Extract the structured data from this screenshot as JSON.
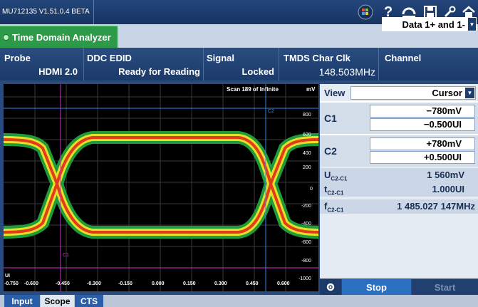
{
  "app": {
    "version": "MU712135 V1.51.0.4 BETA"
  },
  "toolbar": {
    "icons": [
      "windows-icon",
      "help-icon",
      "undo-icon",
      "save-icon",
      "wrench-icon",
      "back-icon",
      "home-icon"
    ],
    "help_glyph": "?"
  },
  "tabs": {
    "active": "Time Domain Analyzer"
  },
  "info": {
    "probe_label": "Probe",
    "probe_value": "HDMI 2.0",
    "ddc_label": "DDC EDID",
    "ddc_value": "Ready for Reading",
    "signal_label": "Signal",
    "signal_value": "Locked",
    "tmds_label": "TMDS Char Clk",
    "tmds_value": "148.503MHz",
    "channel_label": "Channel",
    "channel_value": "Data 1+ and 1-"
  },
  "plot": {
    "scan": "Scan 189 of Infinite",
    "yunit": "mV",
    "xunit": "UI",
    "yticks": [
      "800",
      "600",
      "400",
      "200",
      "0",
      "-200",
      "-400",
      "-600",
      "-800",
      "-1000"
    ],
    "xticks": [
      "-0.750",
      "-0.600",
      "-0.450",
      "-0.300",
      "-0.150",
      "0.000",
      "0.150",
      "0.300",
      "0.450",
      "0.600"
    ],
    "c1_label": "C1",
    "c2_label": "C2",
    "colors": {
      "cursor_c1": "#d230d2",
      "cursor_c2": "#3a86e8"
    }
  },
  "panel": {
    "view_label": "View",
    "view_value": "Cursor",
    "c1_label": "C1",
    "c1_voltage": "−780mV",
    "c1_time": "−0.500UI",
    "c2_label": "C2",
    "c2_voltage": "+780mV",
    "c2_time": "+0.500UI",
    "u_label": "U",
    "u_sub": "C2-C1",
    "u_value": "1 560mV",
    "t_label": "t",
    "t_sub": "C2-C1",
    "t_value": "1.000UI",
    "f_label": "f",
    "f_sub": "C2-C1",
    "f_value": "1 485.027 147MHz"
  },
  "actions": {
    "stop": "Stop",
    "start": "Start"
  },
  "bottom_tabs": [
    "Input",
    "Scope",
    "CTS"
  ]
}
